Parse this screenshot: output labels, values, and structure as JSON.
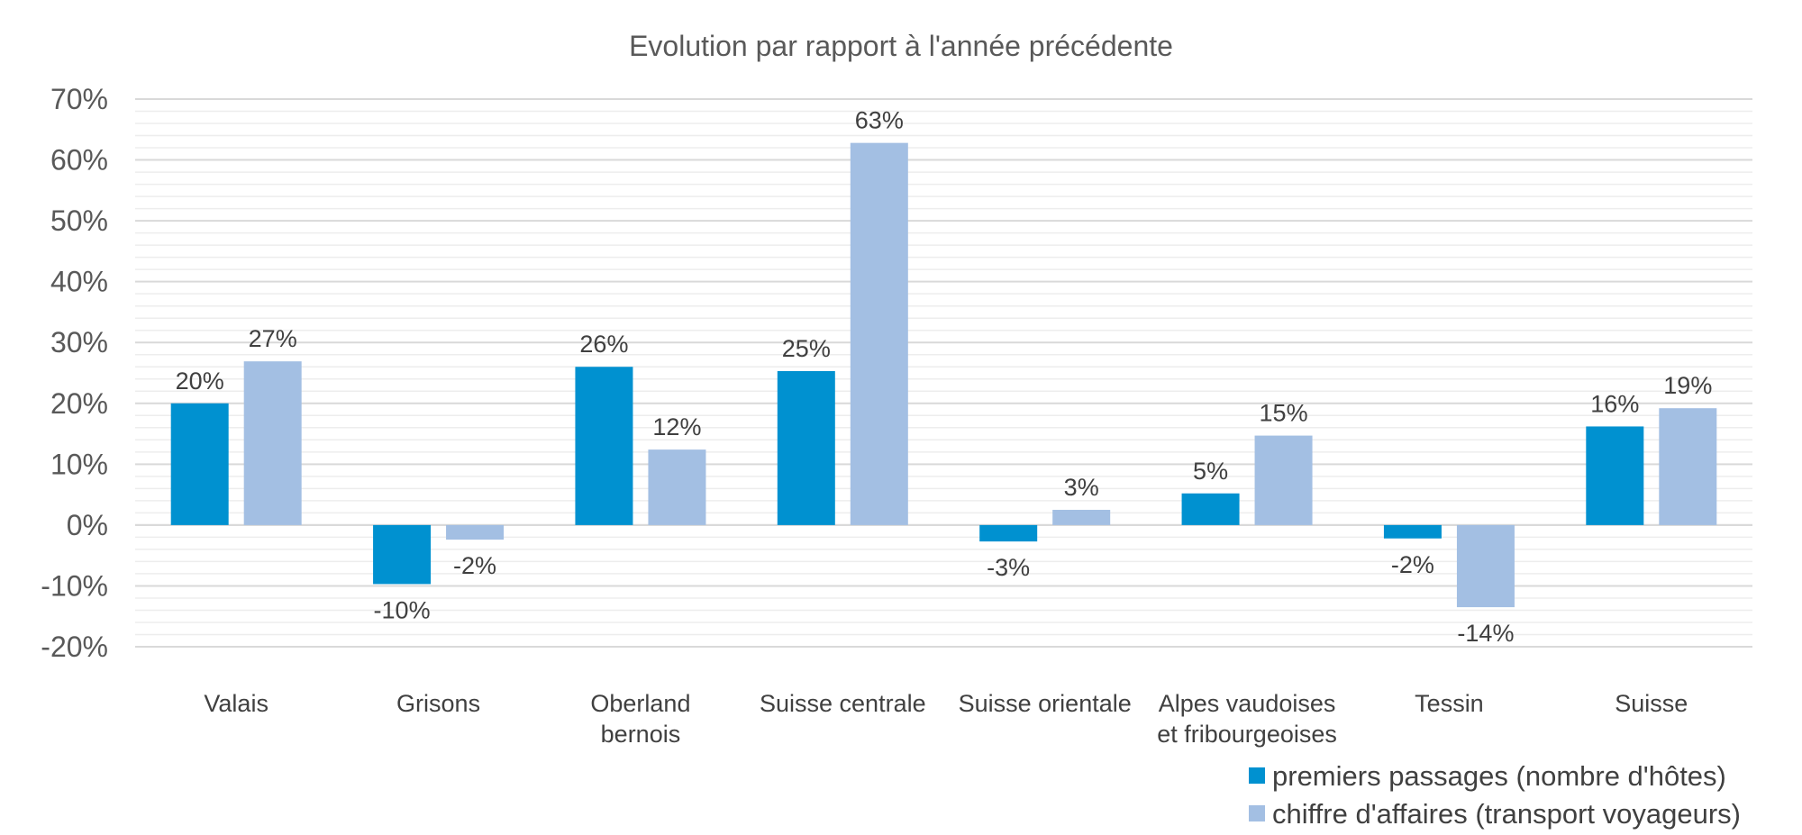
{
  "chart_data": {
    "type": "bar",
    "title": "Evolution par rapport à l'année précédente",
    "xlabel": "",
    "ylabel": "",
    "categories": [
      [
        "Valais"
      ],
      [
        "Grisons"
      ],
      [
        "Oberland",
        "bernois"
      ],
      [
        "Suisse centrale"
      ],
      [
        "Suisse orientale"
      ],
      [
        "Alpes vaudoises",
        "et fribourgeoises"
      ],
      [
        "Tessin"
      ],
      [
        "Suisse"
      ]
    ],
    "series": [
      {
        "name": "premiers passages (nombre d'hôtes)",
        "color": "#0091D0",
        "values": [
          20,
          -9.7,
          26,
          25.3,
          -2.7,
          5.2,
          -2.2,
          16.2
        ],
        "labels": [
          "20%",
          "-10%",
          "26%",
          "25%",
          "-3%",
          "5%",
          "-2%",
          "16%"
        ]
      },
      {
        "name": "chiffre d'affaires (transport voyageurs)",
        "color": "#A3BFE3",
        "values": [
          26.9,
          -2.4,
          12.4,
          62.8,
          2.5,
          14.7,
          -13.5,
          19.2
        ],
        "labels": [
          "27%",
          "-2%",
          "12%",
          "63%",
          "3%",
          "15%",
          "-14%",
          "19%"
        ]
      }
    ],
    "ylim": [
      -20,
      70
    ],
    "yticks": [
      70,
      60,
      50,
      40,
      30,
      20,
      10,
      0,
      -10,
      -20
    ],
    "ytick_labels": [
      "70%",
      "60%",
      "50%",
      "40%",
      "30%",
      "20%",
      "10%",
      "0%",
      "-10%",
      "-20%"
    ],
    "grid": true,
    "legend": "bottom-right"
  }
}
